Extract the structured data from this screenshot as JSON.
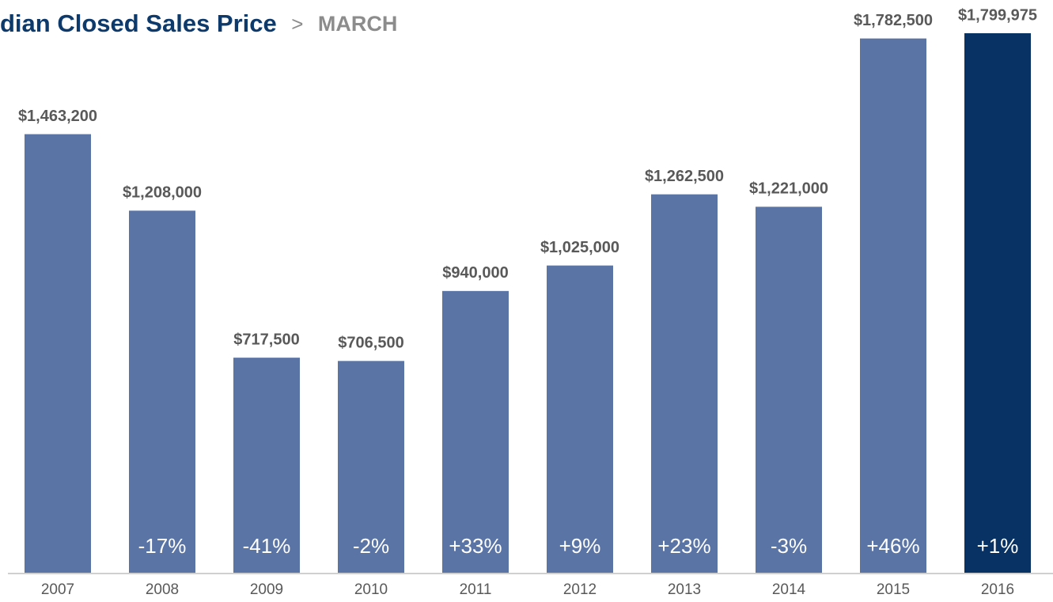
{
  "chart_data": {
    "type": "bar",
    "title": "dian Closed Sales Price",
    "separator": ">",
    "subtitle": "MARCH",
    "categories": [
      "2007",
      "2008",
      "2009",
      "2010",
      "2011",
      "2012",
      "2013",
      "2014",
      "2015",
      "2016"
    ],
    "values": [
      1463200,
      1208000,
      717500,
      706500,
      940000,
      1025000,
      1262500,
      1221000,
      1782500,
      1799975
    ],
    "value_labels": [
      "$1,463,200",
      "$1,208,000",
      "$717,500",
      "$706,500",
      "$940,000",
      "$1,025,000",
      "$1,262,500",
      "$1,221,000",
      "$1,782,500",
      "$1,799,975"
    ],
    "changes": [
      null,
      -17,
      -41,
      -2,
      33,
      9,
      23,
      -3,
      46,
      1
    ],
    "change_labels": [
      null,
      "-17%",
      "-41%",
      "-2%",
      "+33%",
      "+9%",
      "+23%",
      "-3%",
      "+46%",
      "+1%"
    ],
    "colors": [
      "#5b74a6",
      "#5b74a6",
      "#5b74a6",
      "#5b74a6",
      "#5b74a6",
      "#5b74a6",
      "#5b74a6",
      "#5b74a6",
      "#5b74a6",
      "#083263"
    ],
    "ylim": [
      0,
      1800000
    ]
  }
}
